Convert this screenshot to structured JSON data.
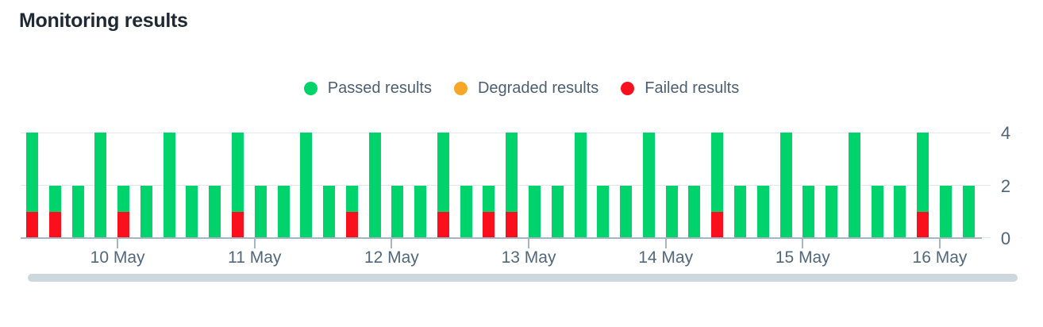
{
  "title": "Monitoring results",
  "legend": {
    "items": [
      {
        "label": "Passed results",
        "icon": "passed-dot-icon",
        "color": "#00d36b"
      },
      {
        "label": "Degraded results",
        "icon": "degraded-dot-icon",
        "color": "#f6a727"
      },
      {
        "label": "Failed results",
        "icon": "failed-dot-icon",
        "color": "#fa0f1c"
      }
    ]
  },
  "chart_data": {
    "type": "bar",
    "subtype": "stacked_vertical_bars",
    "title": "Monitoring results",
    "x": {
      "tick_labels": [
        "10 May",
        "11 May",
        "12 May",
        "13 May",
        "14 May",
        "15 May",
        "16 May"
      ],
      "first_tick_bar_index": 4,
      "bars_per_tick": 6
    },
    "y": {
      "tick_labels": [
        "0",
        "2",
        "4"
      ],
      "ticks": [
        0,
        2,
        4
      ],
      "min": 0,
      "max": 4,
      "side": "right"
    },
    "grid": true,
    "legend_position": "top-center",
    "bar_count": 42,
    "stack_order_bottom_to_top": [
      "Failed results",
      "Degraded results",
      "Passed results"
    ],
    "series": [
      {
        "name": "Failed results",
        "color": "#fa0f1c",
        "values": [
          1,
          1,
          0,
          0,
          1,
          0,
          0,
          0,
          0,
          1,
          0,
          0,
          0,
          0,
          1,
          0,
          0,
          0,
          1,
          0,
          1,
          1,
          0,
          0,
          0,
          0,
          0,
          0,
          0,
          0,
          1,
          0,
          0,
          0,
          0,
          0,
          0,
          0,
          0,
          1,
          0,
          0
        ]
      },
      {
        "name": "Degraded results",
        "color": "#f6a727",
        "values": [
          0,
          0,
          0,
          0,
          0,
          0,
          0,
          0,
          0,
          0,
          0,
          0,
          0,
          0,
          0,
          0,
          0,
          0,
          0,
          0,
          0,
          0,
          0,
          0,
          0,
          0,
          0,
          0,
          0,
          0,
          0,
          0,
          0,
          0,
          0,
          0,
          0,
          0,
          0,
          0,
          0,
          0
        ]
      },
      {
        "name": "Passed results",
        "color": "#00d36b",
        "values": [
          3,
          1,
          2,
          4,
          1,
          2,
          4,
          2,
          2,
          3,
          2,
          2,
          4,
          2,
          1,
          4,
          2,
          2,
          3,
          2,
          1,
          3,
          2,
          2,
          4,
          2,
          2,
          4,
          2,
          2,
          3,
          2,
          2,
          4,
          2,
          2,
          4,
          2,
          2,
          3,
          2,
          2
        ]
      }
    ]
  },
  "colors": {
    "passed": "#00d36b",
    "degraded": "#f6a727",
    "failed": "#fa0f1c",
    "axis_line": "#a6b5c2",
    "gridline": "#e4e8ec",
    "scrollbar": "#cdd7de",
    "title_text": "#1e2933",
    "legend_text": "#4c5f71",
    "axis_text": "#4e6579"
  }
}
